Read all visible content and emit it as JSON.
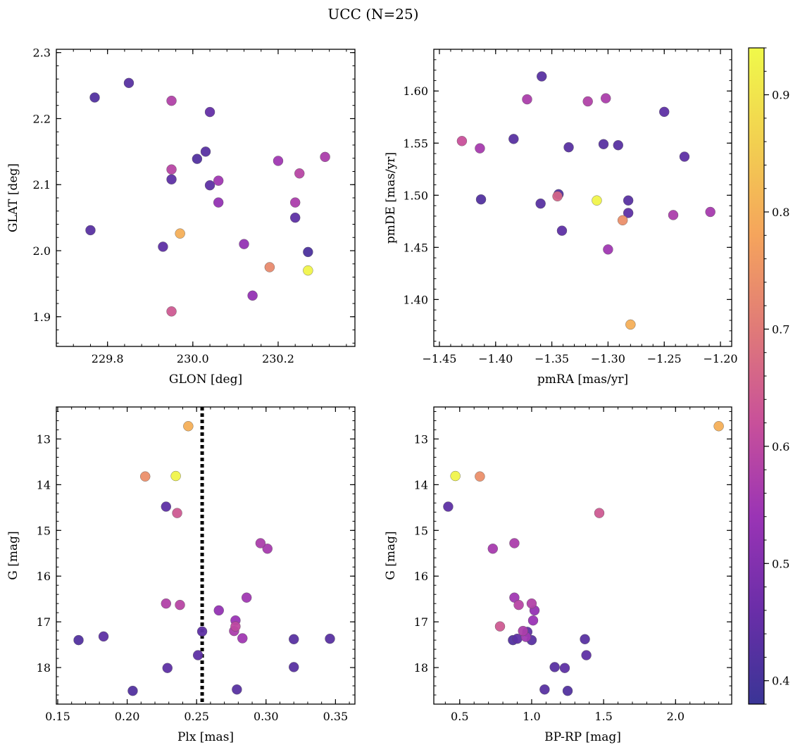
{
  "figure": {
    "title": "UCC (N=25)"
  },
  "colors": {
    "cmap": [
      "#3a3596",
      "#6a2ea8",
      "#9a34b5",
      "#c8509a",
      "#e07a78",
      "#f5a45c",
      "#f2d050",
      "#f0f94a"
    ],
    "edge": "#555555"
  },
  "chart_data": [
    {
      "type": "scatter",
      "xlabel": "GLON [deg]",
      "ylabel": "GLAT [deg]",
      "xlim": [
        229.68,
        230.38
      ],
      "ylim": [
        1.855,
        2.305
      ],
      "xticks": [
        229.8,
        230.0,
        230.2
      ],
      "xticklabels": [
        "229.8",
        "230.0",
        "230.2"
      ],
      "yticks": [
        1.9,
        2.0,
        2.1,
        2.2,
        2.3
      ],
      "yticklabels": [
        "1.9",
        "2.0",
        "2.1",
        "2.2",
        "2.3"
      ],
      "points": [
        {
          "x": 229.77,
          "y": 2.232,
          "c": 0.42
        },
        {
          "x": 229.85,
          "y": 2.254,
          "c": 0.43
        },
        {
          "x": 229.95,
          "y": 2.227,
          "c": 0.58
        },
        {
          "x": 230.04,
          "y": 2.21,
          "c": 0.45
        },
        {
          "x": 230.03,
          "y": 2.15,
          "c": 0.43
        },
        {
          "x": 230.01,
          "y": 2.139,
          "c": 0.42
        },
        {
          "x": 229.95,
          "y": 2.123,
          "c": 0.59
        },
        {
          "x": 229.95,
          "y": 2.108,
          "c": 0.44
        },
        {
          "x": 230.04,
          "y": 2.099,
          "c": 0.44
        },
        {
          "x": 230.06,
          "y": 2.106,
          "c": 0.55
        },
        {
          "x": 230.06,
          "y": 2.073,
          "c": 0.53
        },
        {
          "x": 230.2,
          "y": 2.136,
          "c": 0.55
        },
        {
          "x": 230.25,
          "y": 2.117,
          "c": 0.59
        },
        {
          "x": 230.31,
          "y": 2.142,
          "c": 0.57
        },
        {
          "x": 230.24,
          "y": 2.073,
          "c": 0.57
        },
        {
          "x": 230.24,
          "y": 2.05,
          "c": 0.44
        },
        {
          "x": 229.76,
          "y": 2.031,
          "c": 0.43
        },
        {
          "x": 229.97,
          "y": 2.026,
          "c": 0.8
        },
        {
          "x": 229.93,
          "y": 2.006,
          "c": 0.44
        },
        {
          "x": 230.12,
          "y": 2.01,
          "c": 0.53
        },
        {
          "x": 230.27,
          "y": 1.998,
          "c": 0.41
        },
        {
          "x": 230.18,
          "y": 1.975,
          "c": 0.73
        },
        {
          "x": 230.27,
          "y": 1.97,
          "c": 0.93
        },
        {
          "x": 230.14,
          "y": 1.932,
          "c": 0.53
        },
        {
          "x": 229.95,
          "y": 1.908,
          "c": 0.64
        }
      ]
    },
    {
      "type": "scatter",
      "xlabel": "pmRA [mas/yr]",
      "ylabel": "pmDE [mas/yr]",
      "xlim": [
        -1.455,
        -1.19
      ],
      "ylim": [
        1.355,
        1.64
      ],
      "xticks": [
        -1.45,
        -1.4,
        -1.35,
        -1.3,
        -1.25,
        -1.2
      ],
      "xticklabels": [
        "−1.45",
        "−1.40",
        "−1.35",
        "−1.30",
        "−1.25",
        "−1.20"
      ],
      "yticks": [
        1.4,
        1.45,
        1.5,
        1.55,
        1.6
      ],
      "yticklabels": [
        "1.40",
        "1.45",
        "1.50",
        "1.55",
        "1.60"
      ],
      "points": [
        {
          "x": -1.359,
          "y": 1.614,
          "c": 0.43
        },
        {
          "x": -1.372,
          "y": 1.592,
          "c": 0.57
        },
        {
          "x": -1.318,
          "y": 1.59,
          "c": 0.58
        },
        {
          "x": -1.302,
          "y": 1.593,
          "c": 0.57
        },
        {
          "x": -1.25,
          "y": 1.58,
          "c": 0.44
        },
        {
          "x": -1.43,
          "y": 1.552,
          "c": 0.62
        },
        {
          "x": -1.414,
          "y": 1.545,
          "c": 0.56
        },
        {
          "x": -1.384,
          "y": 1.554,
          "c": 0.43
        },
        {
          "x": -1.335,
          "y": 1.546,
          "c": 0.43
        },
        {
          "x": -1.304,
          "y": 1.549,
          "c": 0.43
        },
        {
          "x": -1.291,
          "y": 1.548,
          "c": 0.43
        },
        {
          "x": -1.232,
          "y": 1.537,
          "c": 0.44
        },
        {
          "x": -1.413,
          "y": 1.496,
          "c": 0.42
        },
        {
          "x": -1.36,
          "y": 1.492,
          "c": 0.43
        },
        {
          "x": -1.344,
          "y": 1.501,
          "c": 0.42
        },
        {
          "x": -1.345,
          "y": 1.499,
          "c": 0.66
        },
        {
          "x": -1.31,
          "y": 1.495,
          "c": 0.93
        },
        {
          "x": -1.282,
          "y": 1.495,
          "c": 0.43
        },
        {
          "x": -1.282,
          "y": 1.483,
          "c": 0.44
        },
        {
          "x": -1.287,
          "y": 1.476,
          "c": 0.74
        },
        {
          "x": -1.242,
          "y": 1.481,
          "c": 0.57
        },
        {
          "x": -1.209,
          "y": 1.484,
          "c": 0.56
        },
        {
          "x": -1.341,
          "y": 1.466,
          "c": 0.44
        },
        {
          "x": -1.3,
          "y": 1.448,
          "c": 0.55
        },
        {
          "x": -1.28,
          "y": 1.376,
          "c": 0.8
        }
      ]
    },
    {
      "type": "scatter",
      "xlabel": "Plx [mas]",
      "ylabel": "G [mag]",
      "xlim": [
        0.149,
        0.364
      ],
      "ylim": [
        18.8,
        12.3
      ],
      "vline": 0.254,
      "xticks": [
        0.15,
        0.2,
        0.25,
        0.3,
        0.35
      ],
      "xticklabels": [
        "0.15",
        "0.20",
        "0.25",
        "0.30",
        "0.35"
      ],
      "yticks": [
        13,
        14,
        15,
        16,
        17,
        18
      ],
      "yticklabels": [
        "13",
        "14",
        "15",
        "16",
        "17",
        "18"
      ],
      "points": [
        {
          "x": 0.244,
          "y": 12.72,
          "c": 0.8
        },
        {
          "x": 0.213,
          "y": 13.82,
          "c": 0.74
        },
        {
          "x": 0.235,
          "y": 13.81,
          "c": 0.93
        },
        {
          "x": 0.228,
          "y": 14.48,
          "c": 0.44
        },
        {
          "x": 0.236,
          "y": 14.62,
          "c": 0.64
        },
        {
          "x": 0.296,
          "y": 15.28,
          "c": 0.57
        },
        {
          "x": 0.301,
          "y": 15.4,
          "c": 0.56
        },
        {
          "x": 0.228,
          "y": 16.6,
          "c": 0.58
        },
        {
          "x": 0.238,
          "y": 16.63,
          "c": 0.59
        },
        {
          "x": 0.286,
          "y": 16.47,
          "c": 0.55
        },
        {
          "x": 0.266,
          "y": 16.75,
          "c": 0.53
        },
        {
          "x": 0.278,
          "y": 16.97,
          "c": 0.54
        },
        {
          "x": 0.278,
          "y": 17.1,
          "c": 0.6
        },
        {
          "x": 0.277,
          "y": 17.2,
          "c": 0.57
        },
        {
          "x": 0.283,
          "y": 17.36,
          "c": 0.55
        },
        {
          "x": 0.254,
          "y": 17.21,
          "c": 0.44
        },
        {
          "x": 0.165,
          "y": 17.4,
          "c": 0.42
        },
        {
          "x": 0.183,
          "y": 17.32,
          "c": 0.44
        },
        {
          "x": 0.32,
          "y": 17.38,
          "c": 0.43
        },
        {
          "x": 0.346,
          "y": 17.37,
          "c": 0.43
        },
        {
          "x": 0.251,
          "y": 17.73,
          "c": 0.44
        },
        {
          "x": 0.229,
          "y": 18.01,
          "c": 0.44
        },
        {
          "x": 0.32,
          "y": 17.99,
          "c": 0.43
        },
        {
          "x": 0.204,
          "y": 18.51,
          "c": 0.42
        },
        {
          "x": 0.279,
          "y": 18.48,
          "c": 0.43
        }
      ]
    },
    {
      "type": "scatter",
      "xlabel": "BP-RP [mag]",
      "ylabel": "G [mag]",
      "xlim": [
        0.32,
        2.39
      ],
      "ylim": [
        18.8,
        12.3
      ],
      "xticks": [
        0.5,
        1.0,
        1.5,
        2.0
      ],
      "xticklabels": [
        "0.5",
        "1.0",
        "1.5",
        "2.0"
      ],
      "yticks": [
        13,
        14,
        15,
        16,
        17,
        18
      ],
      "yticklabels": [
        "13",
        "14",
        "15",
        "16",
        "17",
        "18"
      ],
      "points": [
        {
          "x": 2.3,
          "y": 12.72,
          "c": 0.8
        },
        {
          "x": 0.47,
          "y": 13.81,
          "c": 0.93
        },
        {
          "x": 0.64,
          "y": 13.82,
          "c": 0.74
        },
        {
          "x": 0.42,
          "y": 14.48,
          "c": 0.44
        },
        {
          "x": 1.47,
          "y": 14.62,
          "c": 0.64
        },
        {
          "x": 0.73,
          "y": 15.4,
          "c": 0.56
        },
        {
          "x": 0.88,
          "y": 15.28,
          "c": 0.57
        },
        {
          "x": 0.88,
          "y": 16.47,
          "c": 0.55
        },
        {
          "x": 0.91,
          "y": 16.63,
          "c": 0.59
        },
        {
          "x": 1.0,
          "y": 16.6,
          "c": 0.58
        },
        {
          "x": 1.02,
          "y": 16.75,
          "c": 0.53
        },
        {
          "x": 1.01,
          "y": 16.97,
          "c": 0.54
        },
        {
          "x": 0.78,
          "y": 17.1,
          "c": 0.64
        },
        {
          "x": 0.94,
          "y": 17.2,
          "c": 0.57
        },
        {
          "x": 0.97,
          "y": 17.22,
          "c": 0.44
        },
        {
          "x": 0.96,
          "y": 17.33,
          "c": 0.55
        },
        {
          "x": 0.87,
          "y": 17.4,
          "c": 0.42
        },
        {
          "x": 0.9,
          "y": 17.37,
          "c": 0.44
        },
        {
          "x": 1.0,
          "y": 17.4,
          "c": 0.43
        },
        {
          "x": 1.37,
          "y": 17.38,
          "c": 0.43
        },
        {
          "x": 1.38,
          "y": 17.73,
          "c": 0.44
        },
        {
          "x": 1.16,
          "y": 17.99,
          "c": 0.43
        },
        {
          "x": 1.23,
          "y": 18.01,
          "c": 0.44
        },
        {
          "x": 1.09,
          "y": 18.48,
          "c": 0.43
        },
        {
          "x": 1.25,
          "y": 18.51,
          "c": 0.42
        }
      ]
    }
  ],
  "colorbar": {
    "range": [
      0.38,
      0.94
    ],
    "ticks": [
      0.4,
      0.5,
      0.6,
      0.7,
      0.8,
      0.9
    ],
    "ticklabels": [
      "0.4",
      "0.5",
      "0.6",
      "0.7",
      "0.8",
      "0.9"
    ]
  }
}
